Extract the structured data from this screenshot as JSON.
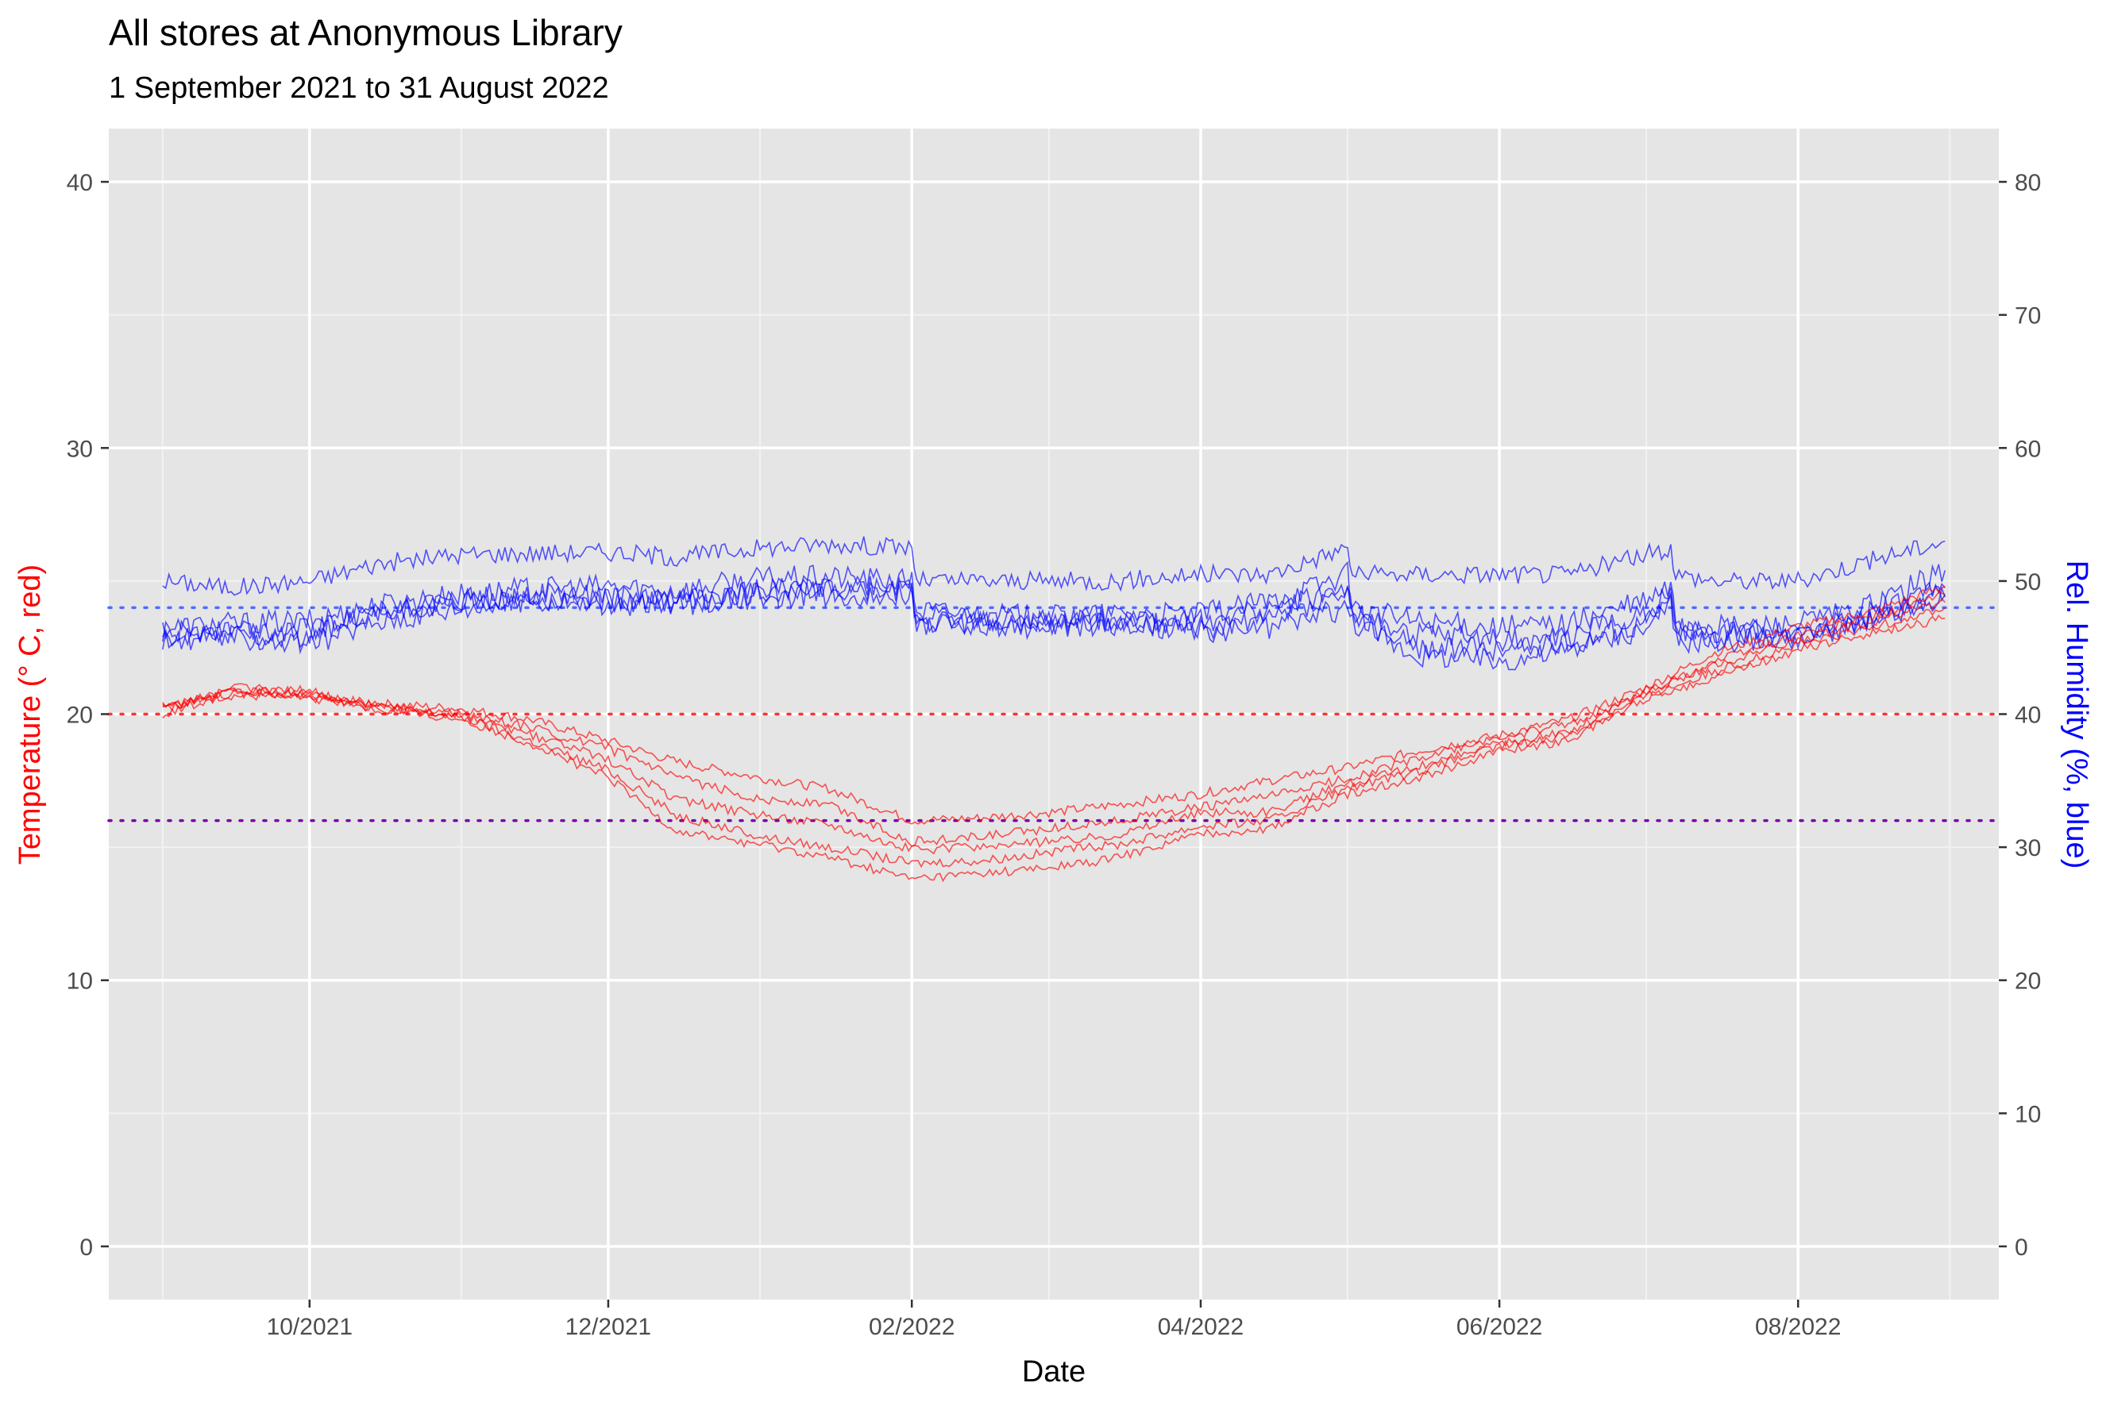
{
  "chart_data": {
    "type": "line",
    "title": "All stores at Anonymous Library",
    "subtitle": "1 September 2021 to 31 August 2022",
    "xlabel": "Date",
    "ylabel_left": "Temperature (° C, red)",
    "ylabel_right": "Rel. Humidity (%, blue)",
    "x_tick_labels": [
      "10/2021",
      "12/2021",
      "02/2022",
      "04/2022",
      "06/2022",
      "08/2022"
    ],
    "x_tick_dates": [
      "2021-10-01",
      "2021-12-01",
      "2022-02-01",
      "2022-04-01",
      "2022-06-01",
      "2022-08-01"
    ],
    "x_minor_dates": [
      "2021-09-01",
      "2021-11-01",
      "2022-01-01",
      "2022-03-01",
      "2022-05-01",
      "2022-07-01",
      "2022-09-01"
    ],
    "xlim": [
      "2021-08-21",
      "2022-09-11"
    ],
    "y_left_ticks": [
      0,
      10,
      20,
      30,
      40
    ],
    "y_left_lim": [
      -2,
      42
    ],
    "y_right_ticks": [
      0,
      10,
      20,
      30,
      40,
      50,
      60,
      70,
      80
    ],
    "y_right_lim": [
      -4,
      84
    ],
    "grid": true,
    "reference_lines": [
      {
        "axis": "left",
        "value": 20,
        "color": "#ff3333"
      },
      {
        "axis": "left",
        "value": 16,
        "color": "#7a00a8"
      },
      {
        "axis": "right",
        "value": 48,
        "color": "#4d6dff"
      }
    ],
    "colors": {
      "temperature": "#ff0000",
      "humidity": "#0000ff",
      "panel": "#e5e5e5",
      "grid": "#ffffff"
    },
    "temperature_series": [
      {
        "x": [
          "2021-09-01",
          "2021-09-15",
          "2021-10-01",
          "2021-10-15",
          "2021-11-01",
          "2021-11-15",
          "2021-12-01",
          "2021-12-15",
          "2022-01-01",
          "2022-01-15",
          "2022-02-01",
          "2022-02-15",
          "2022-03-01",
          "2022-03-15",
          "2022-04-01",
          "2022-04-15",
          "2022-05-01",
          "2022-05-15",
          "2022-06-01",
          "2022-06-15",
          "2022-07-01",
          "2022-07-15",
          "2022-08-01",
          "2022-08-15",
          "2022-08-31"
        ],
        "y": [
          20.4,
          20.7,
          20.6,
          20.4,
          20.2,
          19.8,
          19.0,
          18.2,
          17.6,
          17.2,
          16.0,
          16.1,
          16.3,
          16.6,
          17.0,
          17.5,
          18.0,
          18.6,
          19.2,
          19.8,
          21.0,
          22.3,
          23.3,
          23.8,
          24.8
        ]
      },
      {
        "x": [
          "2021-09-01",
          "2021-09-15",
          "2021-10-01",
          "2021-10-15",
          "2021-11-01",
          "2021-11-15",
          "2021-12-01",
          "2021-12-15",
          "2022-01-01",
          "2022-01-15",
          "2022-02-01",
          "2022-02-15",
          "2022-03-01",
          "2022-03-15",
          "2022-04-01",
          "2022-04-15",
          "2022-05-01",
          "2022-05-15",
          "2022-06-01",
          "2022-06-15",
          "2022-07-01",
          "2022-07-15",
          "2022-08-01",
          "2022-08-15",
          "2022-08-31"
        ],
        "y": [
          20.3,
          20.8,
          20.7,
          20.3,
          20.0,
          19.5,
          18.7,
          17.6,
          16.8,
          16.6,
          15.2,
          15.4,
          15.7,
          16.0,
          16.5,
          16.9,
          17.6,
          18.3,
          19.1,
          19.6,
          20.8,
          22.0,
          23.0,
          23.6,
          24.5
        ]
      },
      {
        "x": [
          "2021-09-01",
          "2021-09-15",
          "2021-10-01",
          "2021-10-15",
          "2021-11-01",
          "2021-11-15",
          "2021-12-01",
          "2021-12-15",
          "2022-01-01",
          "2022-01-15",
          "2022-02-01",
          "2022-02-15",
          "2022-03-01",
          "2022-03-15",
          "2022-04-01",
          "2022-04-15",
          "2022-05-01",
          "2022-05-15",
          "2022-06-01",
          "2022-06-15",
          "2022-07-01",
          "2022-07-15",
          "2022-08-01",
          "2022-08-15",
          "2022-08-31"
        ],
        "y": [
          20.2,
          20.9,
          20.6,
          20.2,
          19.9,
          19.2,
          18.3,
          16.8,
          16.2,
          15.9,
          14.9,
          15.0,
          15.2,
          15.5,
          16.3,
          16.3,
          17.4,
          18.0,
          18.9,
          19.3,
          20.9,
          21.8,
          22.8,
          23.4,
          24.2
        ]
      },
      {
        "x": [
          "2021-09-01",
          "2021-09-15",
          "2021-10-01",
          "2021-10-15",
          "2021-11-01",
          "2021-11-15",
          "2021-12-01",
          "2021-12-15",
          "2022-01-01",
          "2022-01-15",
          "2022-02-01",
          "2022-02-15",
          "2022-03-01",
          "2022-03-15",
          "2022-04-01",
          "2022-04-15",
          "2022-05-01",
          "2022-05-15",
          "2022-06-01",
          "2022-06-15",
          "2022-07-01",
          "2022-07-15",
          "2022-08-01",
          "2022-08-15",
          "2022-08-31"
        ],
        "y": [
          20.1,
          21.0,
          20.8,
          20.3,
          19.9,
          19.0,
          17.9,
          16.2,
          15.4,
          15.0,
          14.4,
          14.5,
          14.8,
          15.1,
          15.8,
          16.0,
          17.2,
          17.8,
          18.8,
          19.2,
          20.7,
          21.6,
          22.6,
          23.2,
          24.0
        ]
      },
      {
        "x": [
          "2021-09-01",
          "2021-09-15",
          "2021-10-01",
          "2021-10-15",
          "2021-11-01",
          "2021-11-15",
          "2021-12-01",
          "2021-12-15",
          "2022-01-01",
          "2022-01-15",
          "2022-02-01",
          "2022-02-15",
          "2022-03-01",
          "2022-03-15",
          "2022-04-01",
          "2022-04-15",
          "2022-05-01",
          "2022-05-15",
          "2022-06-01",
          "2022-06-15",
          "2022-07-01",
          "2022-07-15",
          "2022-08-01",
          "2022-08-15",
          "2022-08-31"
        ],
        "y": [
          20.0,
          20.8,
          20.9,
          20.1,
          19.8,
          18.9,
          17.6,
          15.6,
          15.1,
          14.6,
          13.8,
          14.0,
          14.2,
          14.6,
          15.5,
          15.7,
          17.0,
          17.6,
          18.6,
          19.0,
          20.6,
          21.4,
          22.4,
          23.0,
          23.6
        ]
      }
    ],
    "humidity_series": [
      {
        "x": [
          "2021-09-01",
          "2021-09-15",
          "2021-10-01",
          "2021-10-15",
          "2021-11-01",
          "2021-11-15",
          "2021-12-01",
          "2021-12-15",
          "2022-01-01",
          "2022-01-15",
          "2022-02-01",
          "2022-02-02",
          "2022-02-15",
          "2022-03-01",
          "2022-03-15",
          "2022-04-01",
          "2022-04-15",
          "2022-05-01",
          "2022-05-02",
          "2022-05-15",
          "2022-06-01",
          "2022-06-15",
          "2022-07-01",
          "2022-07-06",
          "2022-07-07",
          "2022-07-15",
          "2022-08-01",
          "2022-08-15",
          "2022-08-31"
        ],
        "y": [
          50.0,
          49.5,
          50.0,
          51.3,
          52.0,
          52.1,
          52.2,
          51.8,
          52.5,
          52.8,
          52.5,
          50.0,
          50.0,
          50.0,
          50.0,
          50.5,
          50.5,
          52.5,
          50.5,
          50.5,
          50.5,
          50.5,
          52.0,
          52.5,
          50.5,
          50.0,
          50.0,
          51.5,
          53.0
        ]
      },
      {
        "x": [
          "2021-09-01",
          "2021-09-15",
          "2021-10-01",
          "2021-10-15",
          "2021-11-01",
          "2021-11-15",
          "2021-12-01",
          "2021-12-15",
          "2022-01-01",
          "2022-01-15",
          "2022-02-01",
          "2022-02-02",
          "2022-02-15",
          "2022-03-01",
          "2022-03-15",
          "2022-04-01",
          "2022-04-15",
          "2022-05-01",
          "2022-05-02",
          "2022-05-15",
          "2022-06-01",
          "2022-06-15",
          "2022-07-01",
          "2022-07-06",
          "2022-07-07",
          "2022-07-15",
          "2022-08-01",
          "2022-08-15",
          "2022-08-31"
        ],
        "y": [
          46.5,
          46.8,
          47.0,
          48.2,
          49.0,
          49.4,
          49.6,
          49.3,
          50.2,
          50.3,
          50.0,
          47.8,
          47.5,
          47.3,
          47.5,
          47.5,
          48.5,
          50.5,
          48.0,
          47.0,
          46.5,
          46.8,
          48.5,
          49.5,
          47.0,
          46.5,
          46.8,
          48.0,
          50.8
        ]
      },
      {
        "x": [
          "2021-09-01",
          "2021-09-15",
          "2021-10-01",
          "2021-10-15",
          "2021-11-01",
          "2021-11-15",
          "2021-12-01",
          "2021-12-15",
          "2022-01-01",
          "2022-01-15",
          "2022-02-01",
          "2022-02-02",
          "2022-02-15",
          "2022-03-01",
          "2022-03-15",
          "2022-04-01",
          "2022-04-15",
          "2022-05-01",
          "2022-05-02",
          "2022-05-15",
          "2022-06-01",
          "2022-06-15",
          "2022-07-01",
          "2022-07-06",
          "2022-07-07",
          "2022-07-15",
          "2022-08-01",
          "2022-08-15",
          "2022-08-31"
        ],
        "y": [
          46.0,
          46.5,
          46.3,
          47.8,
          48.6,
          49.0,
          48.8,
          48.7,
          49.3,
          49.7,
          49.6,
          47.3,
          47.2,
          47.0,
          47.2,
          47.0,
          47.8,
          49.5,
          47.5,
          46.0,
          45.5,
          45.8,
          47.8,
          49.0,
          46.5,
          46.0,
          46.4,
          47.5,
          49.5
        ]
      },
      {
        "x": [
          "2021-09-01",
          "2021-09-15",
          "2021-10-01",
          "2021-10-15",
          "2021-11-01",
          "2021-11-15",
          "2021-12-01",
          "2021-12-15",
          "2022-01-01",
          "2022-01-15",
          "2022-02-01",
          "2022-02-02",
          "2022-02-15",
          "2022-03-01",
          "2022-03-15",
          "2022-04-01",
          "2022-04-15",
          "2022-05-01",
          "2022-05-02",
          "2022-05-15",
          "2022-06-01",
          "2022-06-15",
          "2022-07-01",
          "2022-07-06",
          "2022-07-07",
          "2022-07-15",
          "2022-08-01",
          "2022-08-15",
          "2022-08-31"
        ],
        "y": [
          45.5,
          46.0,
          45.8,
          47.5,
          48.3,
          48.7,
          48.5,
          48.4,
          49.0,
          49.2,
          49.3,
          47.0,
          46.9,
          46.8,
          46.9,
          46.5,
          47.0,
          48.8,
          47.3,
          45.0,
          44.8,
          45.2,
          47.0,
          48.5,
          46.0,
          45.8,
          46.0,
          47.0,
          49.0
        ]
      },
      {
        "x": [
          "2021-09-01",
          "2021-09-15",
          "2021-10-01",
          "2021-10-15",
          "2021-11-01",
          "2021-11-15",
          "2021-12-01",
          "2021-12-15",
          "2022-01-01",
          "2022-01-15",
          "2022-02-01",
          "2022-02-02",
          "2022-02-15",
          "2022-03-01",
          "2022-03-15",
          "2022-04-01",
          "2022-04-15",
          "2022-05-01",
          "2022-05-02",
          "2022-05-15",
          "2022-06-01",
          "2022-06-15",
          "2022-07-01",
          "2022-07-06",
          "2022-07-07",
          "2022-07-15",
          "2022-08-01",
          "2022-08-15",
          "2022-08-31"
        ],
        "y": [
          45.5,
          45.8,
          45.2,
          47.0,
          48.0,
          48.5,
          48.3,
          48.2,
          48.8,
          49.0,
          49.0,
          46.8,
          46.6,
          46.5,
          46.6,
          46.2,
          46.5,
          48.0,
          47.0,
          44.5,
          44.0,
          44.8,
          46.5,
          48.2,
          45.5,
          45.5,
          45.8,
          46.8,
          48.8
        ]
      }
    ]
  }
}
